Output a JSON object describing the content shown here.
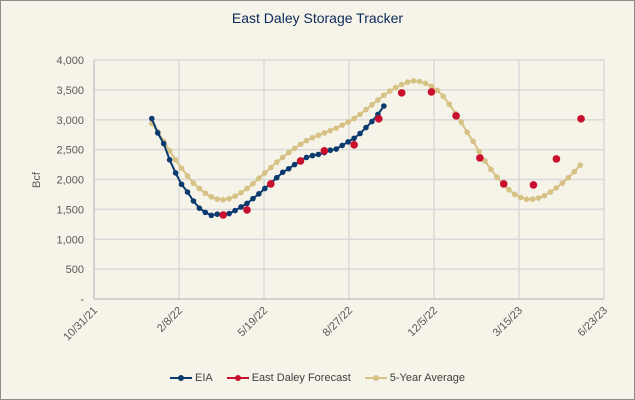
{
  "chart_data": {
    "type": "line",
    "title": "East Daley Storage Tracker",
    "xlabel": "",
    "ylabel": "Bcf",
    "ylim": [
      0,
      4000
    ],
    "xlim": [
      "2021-10-31",
      "2023-06-23"
    ],
    "y_ticks": [
      {
        "value": 0,
        "label": "-"
      },
      {
        "value": 500,
        "label": "500"
      },
      {
        "value": 1000,
        "label": "1,000"
      },
      {
        "value": 1500,
        "label": "1,500"
      },
      {
        "value": 2000,
        "label": "2,000"
      },
      {
        "value": 2500,
        "label": "2,500"
      },
      {
        "value": 3000,
        "label": "3,000"
      },
      {
        "value": 3500,
        "label": "3,500"
      },
      {
        "value": 4000,
        "label": "4,000"
      }
    ],
    "x_ticks": [
      {
        "date": "2021-10-31",
        "label": "10/31/21"
      },
      {
        "date": "2022-02-08",
        "label": "2/8/22"
      },
      {
        "date": "2022-05-19",
        "label": "5/19/22"
      },
      {
        "date": "2022-08-27",
        "label": "8/27/22"
      },
      {
        "date": "2022-12-05",
        "label": "12/5/22"
      },
      {
        "date": "2023-03-15",
        "label": "3/15/23"
      },
      {
        "date": "2023-06-23",
        "label": "6/23/23"
      }
    ],
    "grid": true,
    "legend_position": "bottom",
    "series": [
      {
        "name": "EIA",
        "color": "#0b3a6e",
        "line": true,
        "weekly_start": "2022-01-07",
        "values": [
          3020,
          2780,
          2600,
          2330,
          2110,
          1920,
          1790,
          1640,
          1520,
          1450,
          1400,
          1420,
          1410,
          1430,
          1480,
          1540,
          1600,
          1680,
          1760,
          1850,
          1940,
          2030,
          2120,
          2180,
          2250,
          2310,
          2370,
          2400,
          2420,
          2450,
          2490,
          2510,
          2570,
          2630,
          2690,
          2770,
          2870,
          2970,
          3090,
          3230
        ]
      },
      {
        "name": "East Daley Forecast",
        "color": "#c8102e",
        "line": false,
        "points": [
          {
            "date": "2022-04-01",
            "value": 1406
          },
          {
            "date": "2022-04-29",
            "value": 1490
          },
          {
            "date": "2022-05-27",
            "value": 1925
          },
          {
            "date": "2022-07-01",
            "value": 2310
          },
          {
            "date": "2022-07-29",
            "value": 2480
          },
          {
            "date": "2022-09-02",
            "value": 2580
          },
          {
            "date": "2022-10-01",
            "value": 3015
          },
          {
            "date": "2022-10-28",
            "value": 3450
          },
          {
            "date": "2022-12-02",
            "value": 3465
          },
          {
            "date": "2022-12-31",
            "value": 3065
          },
          {
            "date": "2023-01-28",
            "value": 2360
          },
          {
            "date": "2023-02-25",
            "value": 1925
          },
          {
            "date": "2023-04-01",
            "value": 1910
          },
          {
            "date": "2023-04-28",
            "value": 2345
          },
          {
            "date": "2023-05-27",
            "value": 3015
          }
        ]
      },
      {
        "name": "5-Year Average",
        "color": "#d6c285",
        "line": true,
        "weekly_start": "2022-01-07",
        "values": [
          2940,
          2800,
          2640,
          2480,
          2330,
          2190,
          2060,
          1940,
          1850,
          1770,
          1710,
          1670,
          1660,
          1680,
          1720,
          1780,
          1850,
          1930,
          2020,
          2110,
          2200,
          2290,
          2370,
          2450,
          2520,
          2590,
          2650,
          2700,
          2740,
          2780,
          2820,
          2860,
          2910,
          2960,
          3020,
          3090,
          3170,
          3250,
          3330,
          3410,
          3480,
          3540,
          3590,
          3630,
          3650,
          3640,
          3610,
          3560,
          3490,
          3390,
          3260,
          3110,
          2960,
          2790,
          2640,
          2470,
          2310,
          2170,
          2040,
          1930,
          1830,
          1750,
          1700,
          1670,
          1670,
          1690,
          1730,
          1790,
          1860,
          1940,
          2030,
          2130,
          2240
        ]
      }
    ]
  }
}
